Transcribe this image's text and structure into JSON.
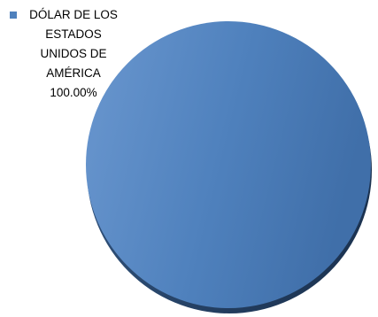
{
  "chart_data": {
    "type": "pie",
    "title": "",
    "slices": [
      {
        "label_lines": [
          "DÓLAR DE LOS",
          "ESTADOS",
          "UNIDOS DE",
          "AMÉRICA"
        ],
        "label": "DÓLAR DE LOS ESTADOS UNIDOS DE AMÉRICA",
        "value": 100.0,
        "value_text": "100.00%",
        "color": "#4f81bd"
      }
    ],
    "legend_position": "top-left",
    "style": "3d-pie"
  }
}
